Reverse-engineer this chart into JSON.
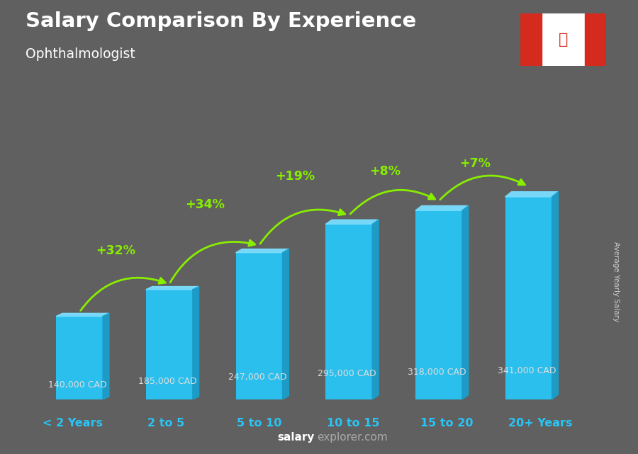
{
  "title": "Salary Comparison By Experience",
  "subtitle": "Ophthalmologist",
  "categories": [
    "< 2 Years",
    "2 to 5",
    "5 to 10",
    "10 to 15",
    "15 to 20",
    "20+ Years"
  ],
  "values": [
    140000,
    185000,
    247000,
    295000,
    318000,
    341000
  ],
  "labels": [
    "140,000 CAD",
    "185,000 CAD",
    "247,000 CAD",
    "295,000 CAD",
    "318,000 CAD",
    "341,000 CAD"
  ],
  "pct_changes": [
    "+32%",
    "+34%",
    "+19%",
    "+8%",
    "+7%"
  ],
  "bar_color_face": "#29c5f6",
  "bar_color_light": "#7adeff",
  "bar_color_dark": "#1190c0",
  "bar_color_side": "#1a9fcc",
  "background_color": "#606060",
  "title_color": "#ffffff",
  "subtitle_color": "#ffffff",
  "label_color": "#dddddd",
  "pct_color": "#88ee00",
  "xlabel_color": "#29c5f6",
  "footer_bold_color": "#ffffff",
  "footer_normal_color": "#aaaaaa",
  "ylabel_text": "Average Yearly Salary",
  "footer_salary": "salary",
  "footer_rest": "explorer.com",
  "ylim": [
    0,
    420000
  ],
  "bar_bottom": 0,
  "arrow_rad": -0.4,
  "label_yfracs": [
    0.28,
    0.28,
    0.28,
    0.28,
    0.28,
    0.28
  ],
  "pct_y_offsets": [
    55000,
    70000,
    70000,
    55000,
    45000
  ],
  "pct_x_offsets": [
    -0.1,
    -0.1,
    -0.1,
    -0.1,
    -0.1
  ]
}
